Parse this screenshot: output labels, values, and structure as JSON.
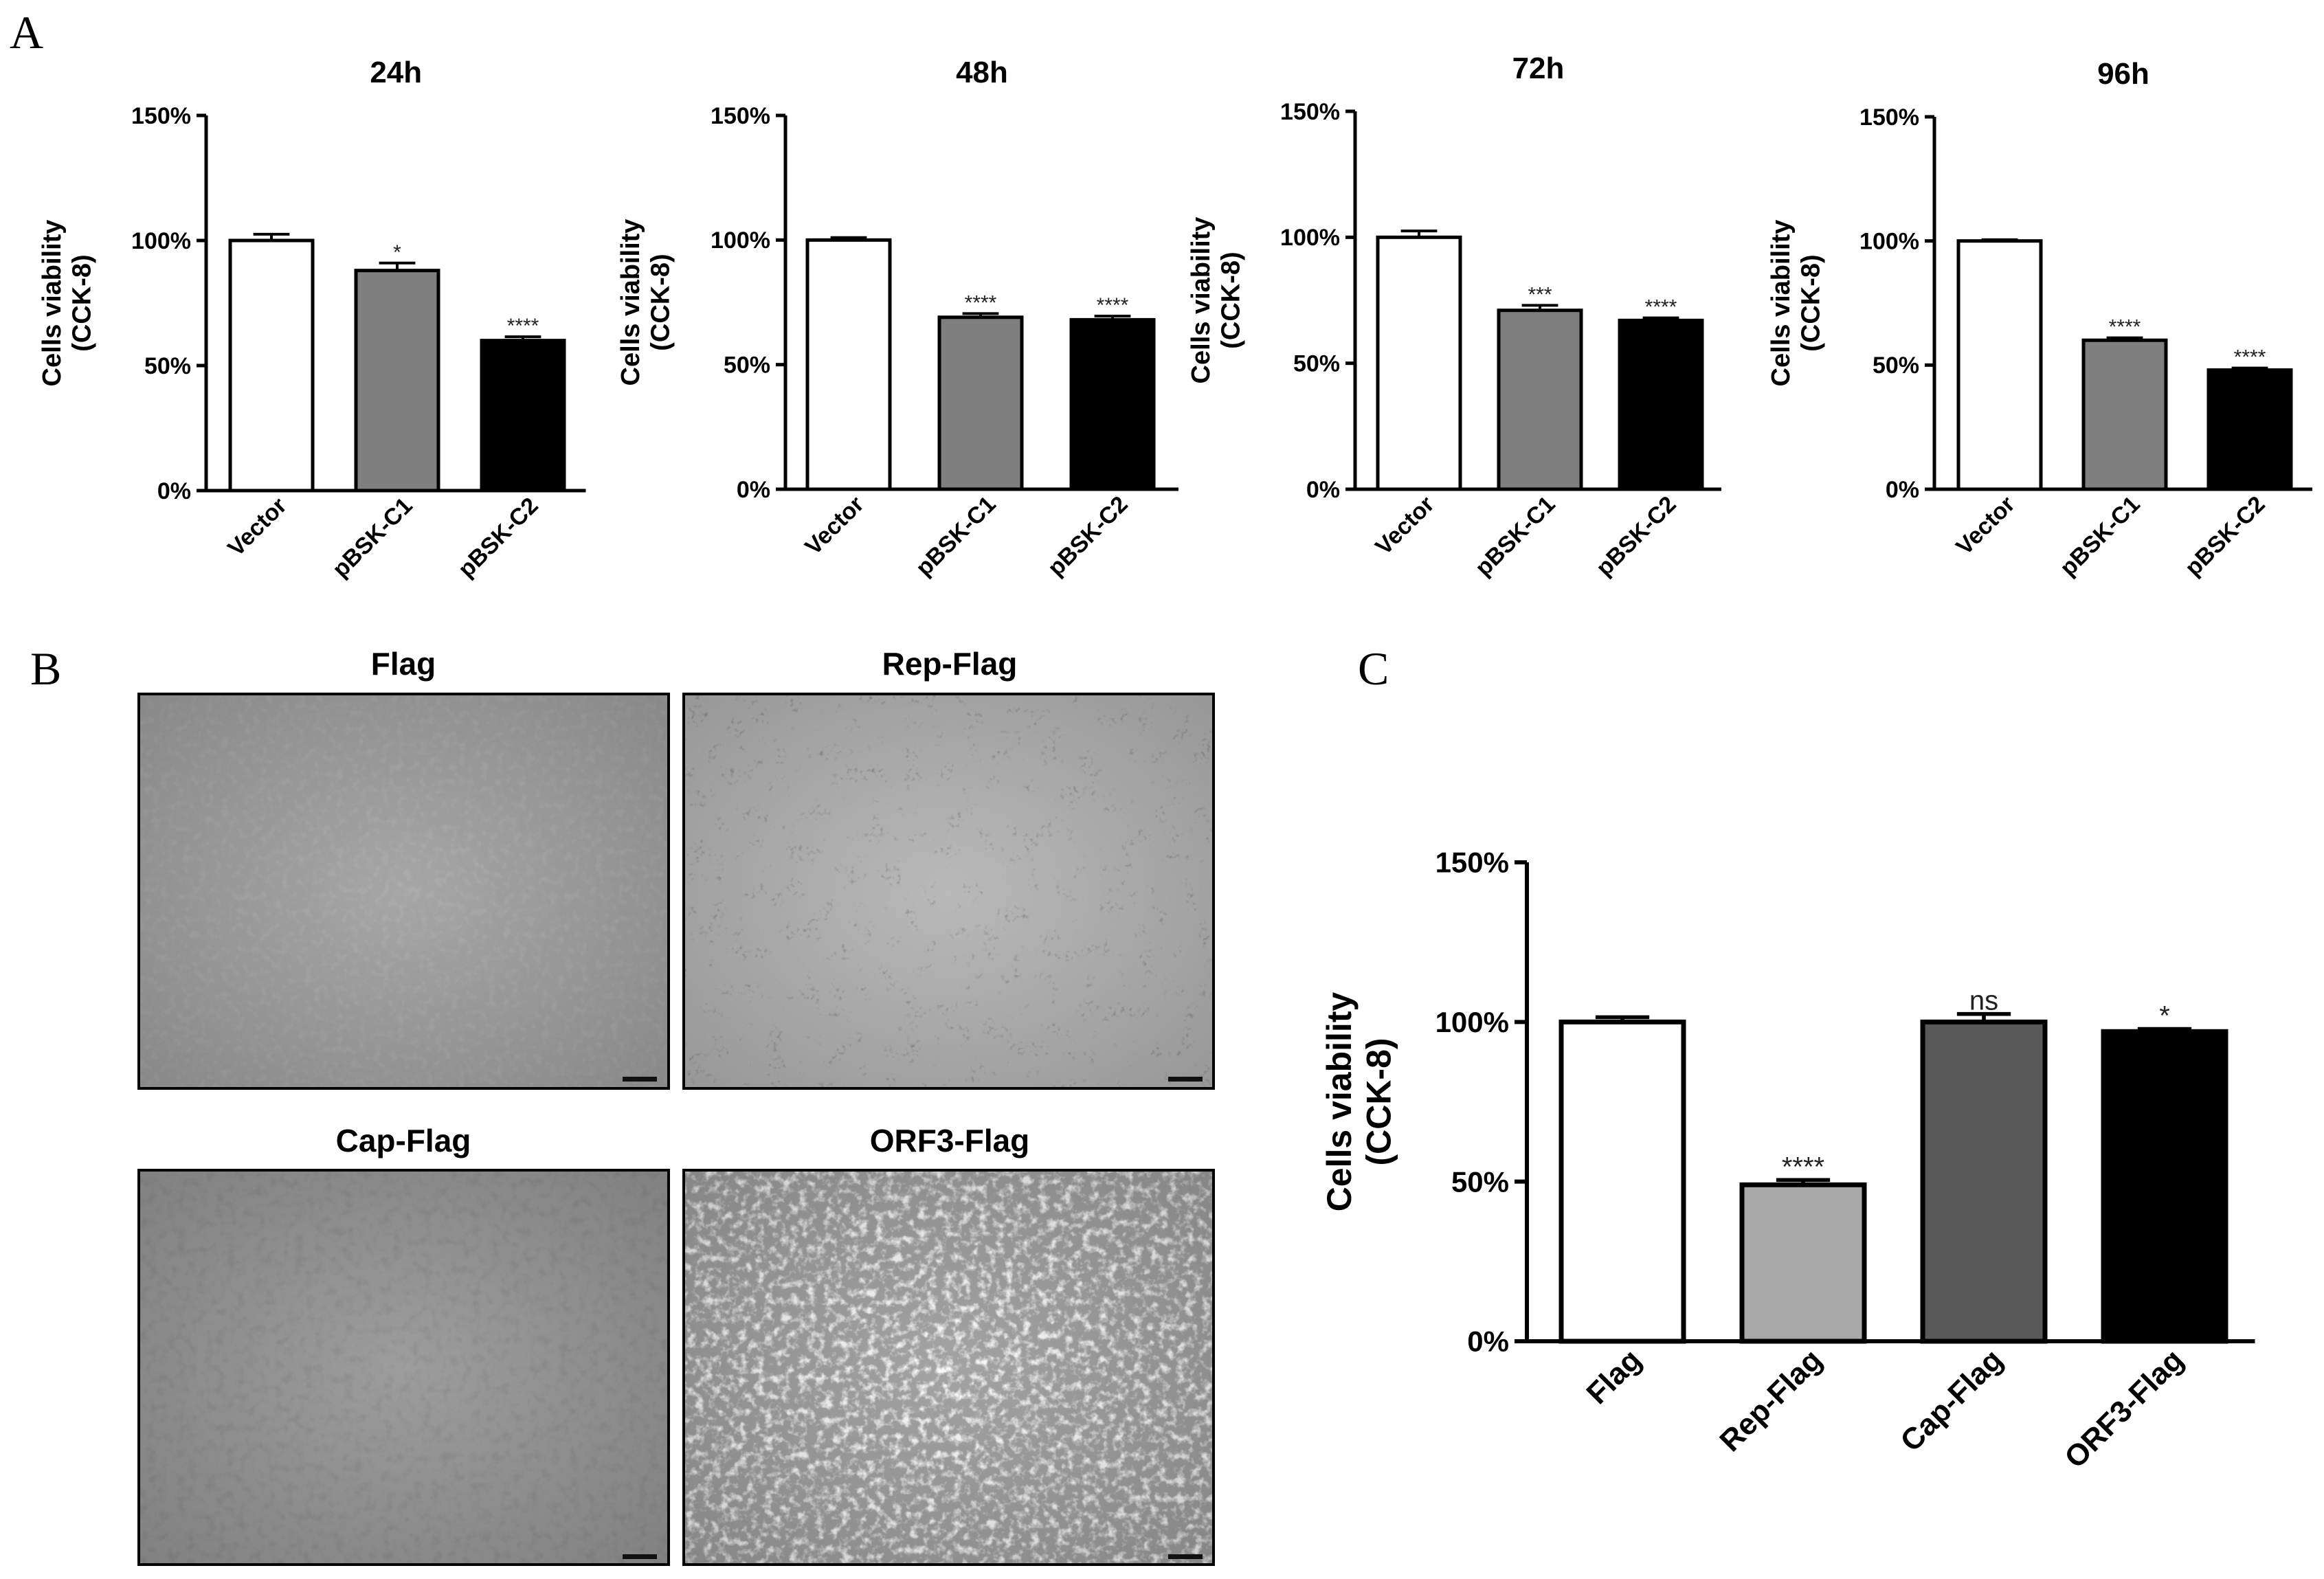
{
  "panels": {
    "a": "A",
    "b": "B",
    "c": "C"
  },
  "panel_a": {
    "ylabel_line1": "Cells viability",
    "ylabel_line2": "(CCK-8)",
    "yticks": [
      "0%",
      "50%",
      "100%",
      "150%"
    ]
  },
  "panel_b": {
    "micrographs": [
      "Flag",
      "Rep-Flag",
      "Cap-Flag",
      "ORF3-Flag"
    ]
  },
  "panel_c": {
    "ylabel_line1": "Cells viability",
    "ylabel_line2": "(CCK-8)",
    "yticks": [
      "0%",
      "50%",
      "100%",
      "150%"
    ]
  },
  "chart_data": [
    {
      "type": "bar",
      "title": "24h",
      "categories": [
        "Vector",
        "pBSK-C1",
        "pBSK-C2"
      ],
      "values": [
        100,
        88,
        60
      ],
      "errors": [
        2.5,
        3,
        1.5
      ],
      "significance": [
        "",
        "*",
        "****"
      ],
      "ylabel": "Cells viability (CCK-8)",
      "ylim": [
        0,
        150
      ],
      "bar_colors": [
        "#ffffff",
        "#7f7f7f",
        "#000000"
      ]
    },
    {
      "type": "bar",
      "title": "48h",
      "categories": [
        "Vector",
        "pBSK-C1",
        "pBSK-C2"
      ],
      "values": [
        100,
        69,
        68
      ],
      "errors": [
        1,
        1.5,
        1.5
      ],
      "significance": [
        "",
        "****",
        "****"
      ],
      "ylabel": "Cells viability (CCK-8)",
      "ylim": [
        0,
        150
      ],
      "bar_colors": [
        "#ffffff",
        "#7f7f7f",
        "#000000"
      ]
    },
    {
      "type": "bar",
      "title": "72h",
      "categories": [
        "Vector",
        "pBSK-C1",
        "pBSK-C2"
      ],
      "values": [
        100,
        71,
        67
      ],
      "errors": [
        2.5,
        2,
        1
      ],
      "significance": [
        "",
        "***",
        "****"
      ],
      "ylabel": "Cells viability (CCK-8)",
      "ylim": [
        0,
        150
      ],
      "bar_colors": [
        "#ffffff",
        "#7f7f7f",
        "#000000"
      ]
    },
    {
      "type": "bar",
      "title": "96h",
      "categories": [
        "Vector",
        "pBSK-C1",
        "pBSK-C2"
      ],
      "values": [
        100,
        60,
        48
      ],
      "errors": [
        0.5,
        1,
        0.8
      ],
      "significance": [
        "",
        "****",
        "****"
      ],
      "ylabel": "Cells viability (CCK-8)",
      "ylim": [
        0,
        150
      ],
      "bar_colors": [
        "#ffffff",
        "#7f7f7f",
        "#000000"
      ]
    },
    {
      "type": "bar",
      "title": "",
      "categories": [
        "Flag",
        "Rep-Flag",
        "Cap-Flag",
        "ORF3-Flag"
      ],
      "values": [
        100,
        49,
        100,
        97
      ],
      "errors": [
        1.5,
        1.5,
        2.5,
        0.8
      ],
      "significance": [
        "",
        "****",
        "ns",
        "*"
      ],
      "ylabel": "Cells viability (CCK-8)",
      "ylim": [
        0,
        150
      ],
      "bar_colors": [
        "#ffffff",
        "#a8a8a8",
        "#595959",
        "#000000"
      ]
    }
  ]
}
